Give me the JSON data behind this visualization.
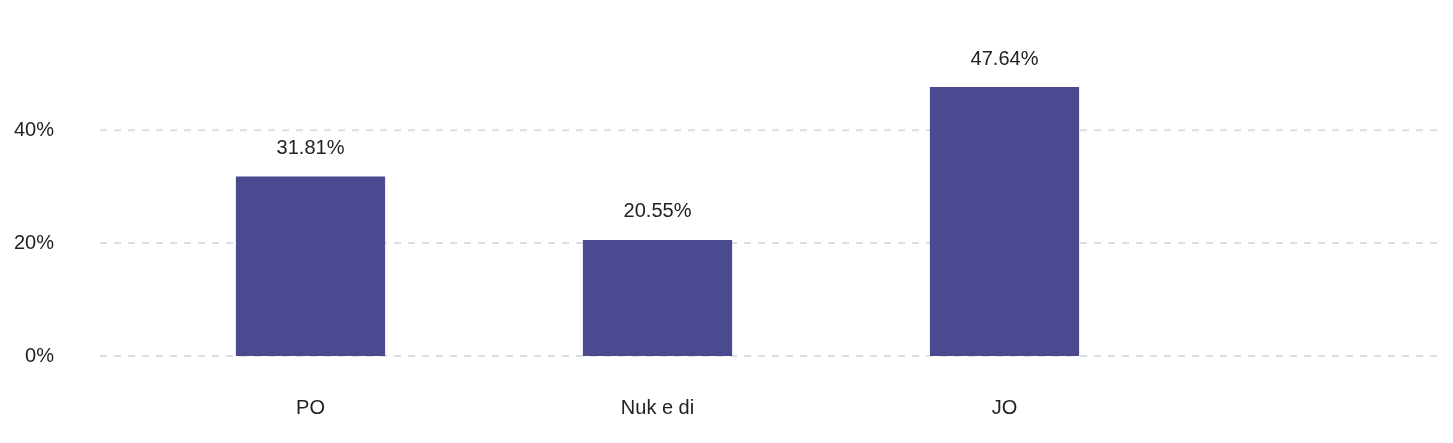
{
  "chart_data": {
    "type": "bar",
    "categories": [
      "PO",
      "Nuk e di",
      "JO"
    ],
    "values": [
      31.81,
      20.55,
      47.64
    ],
    "color": "#4b4a91",
    "value_labels": [
      "31.81%",
      "20.55%",
      "47.64%"
    ],
    "ylim": [
      0,
      47.64
    ],
    "yticks": [
      {
        "value": 0,
        "label": "0%"
      },
      {
        "value": 20,
        "label": "20%"
      },
      {
        "value": 40,
        "label": "40%"
      }
    ],
    "grid": "y",
    "legend": false
  }
}
